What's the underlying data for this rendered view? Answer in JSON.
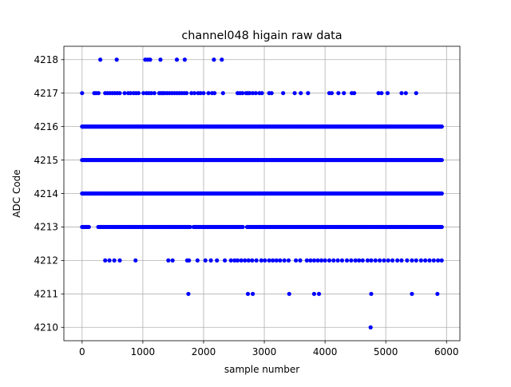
{
  "chart_data": {
    "type": "scatter",
    "title": "channel048 higain raw data",
    "xlabel": "sample number",
    "ylabel": "ADC Code",
    "xlim": [
      -300,
      6220
    ],
    "ylim": [
      4209.6,
      4218.4
    ],
    "xticks": [
      0,
      1000,
      2000,
      3000,
      4000,
      5000,
      6000
    ],
    "yticks": [
      4210,
      4211,
      4212,
      4213,
      4214,
      4215,
      4216,
      4217,
      4218
    ],
    "grid": true,
    "legend": "none",
    "marker_color": "#0000ff",
    "series": [
      {
        "levels": [
          {
            "y": 4210,
            "x": [
              4750
            ]
          },
          {
            "y": 4211,
            "x": [
              1750,
              2730,
              2810,
              3410,
              3820,
              3900,
              4760,
              5430,
              5850
            ]
          },
          {
            "y": 4212,
            "x": [
              380,
              450,
              530,
              620,
              880,
              1420,
              1490,
              1730,
              1760,
              1900,
              2030,
              2120,
              2220,
              2350,
              2450,
              2510,
              2560,
              2620,
              2680,
              2740,
              2800,
              2870,
              2950,
              3010,
              3080,
              3140,
              3200,
              3260,
              3330,
              3400,
              3520,
              3590,
              3700,
              3760,
              3820,
              3880,
              3940,
              4000,
              4070,
              4140,
              4210,
              4280,
              4360,
              4430,
              4500,
              4560,
              4620,
              4700,
              4760,
              4830,
              4900,
              4970,
              5040,
              5110,
              5190,
              5260,
              5350,
              5430,
              5500,
              5580,
              5650,
              5720,
              5790,
              5860,
              5920
            ]
          },
          {
            "y": 4213,
            "x_range": [
              0,
              5930
            ],
            "gaps": [
              [
                120,
                260
              ],
              [
                1780,
                1830
              ],
              [
                2660,
                2710
              ]
            ]
          },
          {
            "y": 4214,
            "x_range": [
              0,
              5930
            ],
            "gaps": []
          },
          {
            "y": 4215,
            "x_range": [
              0,
              5930
            ],
            "gaps": []
          },
          {
            "y": 4216,
            "x_range": [
              0,
              5930
            ],
            "gaps": []
          },
          {
            "y": 4217,
            "x": [
              0,
              200,
              230,
              270,
              380,
              420,
              460,
              500,
              540,
              580,
              620,
              700,
              760,
              800,
              850,
              890,
              930,
              1010,
              1060,
              1100,
              1140,
              1190,
              1270,
              1300,
              1330,
              1360,
              1400,
              1440,
              1480,
              1520,
              1560,
              1600,
              1640,
              1680,
              1720,
              1800,
              1850,
              1910,
              1950,
              2000,
              2080,
              2140,
              2180,
              2320,
              2560,
              2600,
              2640,
              2700,
              2730,
              2760,
              2810,
              2860,
              2920,
              2960,
              3080,
              3120,
              3310,
              3500,
              3600,
              3720,
              4070,
              4110,
              4220,
              4310,
              4440,
              4480,
              4880,
              4930,
              5030,
              5260,
              5330,
              5500
            ]
          },
          {
            "y": 4218,
            "x": [
              300,
              570,
              1040,
              1080,
              1120,
              1290,
              1560,
              1690,
              2170,
              2300
            ]
          }
        ]
      }
    ]
  }
}
